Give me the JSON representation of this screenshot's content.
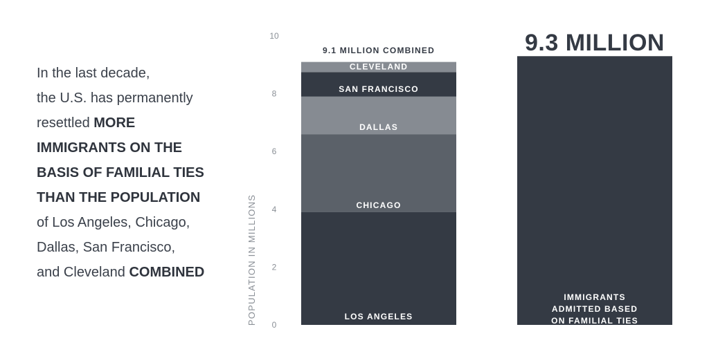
{
  "narrative": {
    "lines": [
      [
        {
          "text": "In the last decade,",
          "bold": false
        }
      ],
      [
        {
          "text": "the U.S. has permanently",
          "bold": false
        }
      ],
      [
        {
          "text": "resettled ",
          "bold": false
        },
        {
          "text": "MORE",
          "bold": true
        }
      ],
      [
        {
          "text": "IMMIGRANTS ON THE",
          "bold": true
        }
      ],
      [
        {
          "text": "BASIS OF FAMILIAL TIES",
          "bold": true
        }
      ],
      [
        {
          "text": "THAN THE POPULATION",
          "bold": true
        }
      ],
      [
        {
          "text": "of Los Angeles, Chicago,",
          "bold": false
        }
      ],
      [
        {
          "text": "Dallas, San Francisco,",
          "bold": false
        }
      ],
      [
        {
          "text": "and Cleveland ",
          "bold": false
        },
        {
          "text": "COMBINED",
          "bold": true
        }
      ]
    ]
  },
  "chart_data": {
    "type": "bar",
    "ylabel": "POPULATION IN MILLIONS",
    "ylim": [
      0,
      10
    ],
    "yticks": [
      0,
      2,
      4,
      6,
      8,
      10
    ],
    "grid": false,
    "bars": [
      {
        "total_label": "9.1 MILLION COMBINED",
        "total": 9.1,
        "stacked": true,
        "segments": [
          {
            "label": "LOS ANGELES",
            "value": 3.9,
            "color": "#343a44"
          },
          {
            "label": "CHICAGO",
            "value": 2.7,
            "color": "#5b6169"
          },
          {
            "label": "DALLAS",
            "value": 1.3,
            "color": "#868b92"
          },
          {
            "label": "SAN FRANCISCO",
            "value": 0.85,
            "color": "#343a44"
          },
          {
            "label": "CLEVELAND",
            "value": 0.35,
            "color": "#868b92"
          }
        ]
      },
      {
        "total_label": "9.3 MILLION",
        "total": 9.3,
        "stacked": false,
        "segments": [
          {
            "label": "IMMIGRANTS ADMITTED BASED ON FAMILIAL TIES",
            "value": 9.3,
            "color": "#343a44"
          }
        ]
      }
    ]
  }
}
